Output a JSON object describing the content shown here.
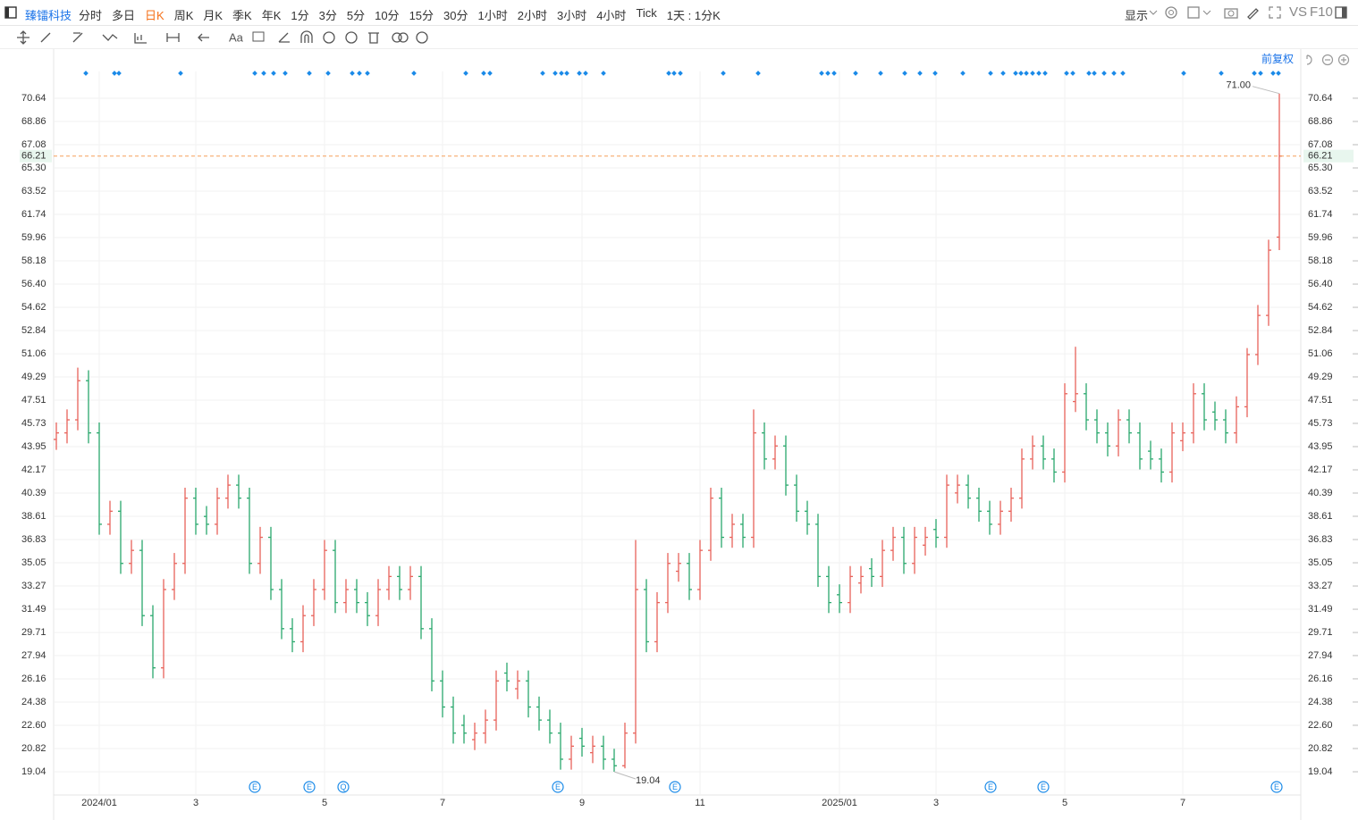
{
  "toolbar": {
    "symbol": "臻镭科技",
    "periods": [
      "分时",
      "多日",
      "日K",
      "周K",
      "月K",
      "季K",
      "年K",
      "1分",
      "3分",
      "5分",
      "10分",
      "15分",
      "30分",
      "1小时",
      "2小时",
      "3小时",
      "4小时",
      "Tick",
      "1天 : 1分K"
    ],
    "active": 2,
    "display": "显示",
    "vs": "VS",
    "f10": "F10",
    "text_tool": "Aa",
    "adjust": "前复权"
  },
  "chart_data": {
    "type": "ohlc",
    "categories": [
      null,
      null,
      null,
      null,
      "2024/01",
      null,
      null,
      null,
      null,
      null,
      null,
      null,
      null,
      "3",
      null,
      null,
      null,
      null,
      null,
      null,
      null,
      null,
      null,
      null,
      null,
      "5",
      null,
      null,
      null,
      null,
      null,
      null,
      null,
      null,
      null,
      null,
      "7",
      null,
      null,
      null,
      null,
      null,
      null,
      null,
      null,
      null,
      null,
      null,
      null,
      "9",
      null,
      null,
      null,
      null,
      null,
      null,
      null,
      null,
      null,
      null,
      "11",
      null,
      null,
      null,
      null,
      null,
      null,
      null,
      null,
      null,
      null,
      null,
      null,
      "2025/01",
      null,
      null,
      null,
      null,
      null,
      null,
      null,
      null,
      "3",
      null,
      null,
      null,
      null,
      null,
      null,
      null,
      null,
      null,
      null,
      null,
      "5",
      null,
      null,
      null,
      null,
      null,
      null,
      null,
      null,
      null,
      null,
      "7",
      null,
      null,
      null,
      null,
      null,
      null,
      null,
      null,
      null
    ],
    "open": [
      44.5,
      45,
      46,
      49,
      45,
      38,
      39,
      35,
      36,
      31,
      27,
      33,
      35,
      40,
      38.6,
      38,
      40,
      41,
      40,
      35,
      37,
      33,
      30,
      29,
      31,
      33,
      36,
      32,
      33,
      32,
      31,
      33,
      34,
      33,
      34,
      30,
      26,
      24,
      22.6,
      21.5,
      22,
      23,
      26.6,
      25.4,
      26,
      24,
      23,
      22,
      20,
      21.6,
      20.5,
      21,
      20,
      19.5,
      22,
      33,
      29,
      32,
      34.4,
      35,
      33,
      36,
      40,
      37,
      38,
      37,
      45,
      43,
      44,
      41,
      39,
      38,
      34,
      32.6,
      32,
      33.5,
      34.6,
      34,
      36,
      37,
      35,
      36.4,
      37.6,
      37,
      40.4,
      41,
      40,
      39,
      38,
      39,
      40,
      43,
      44,
      43,
      42,
      47.4,
      48,
      46,
      45,
      44,
      46,
      45,
      43.6,
      43,
      42,
      44.4,
      45,
      48,
      46.6,
      46,
      45,
      47,
      51,
      54,
      60
    ],
    "high": [
      45.8,
      46.8,
      50,
      49.8,
      45.8,
      39.8,
      39.8,
      36.8,
      36.8,
      31.8,
      33.8,
      35.8,
      40.8,
      40.8,
      39.4,
      40.8,
      41.8,
      41.8,
      40.8,
      37.8,
      37.8,
      33.8,
      30.8,
      31.8,
      33.8,
      36.8,
      36.8,
      33.8,
      33.8,
      32.8,
      33.8,
      34.8,
      34.8,
      34.8,
      34.8,
      30.8,
      26.8,
      24.8,
      23.4,
      22.8,
      23.8,
      26.8,
      27.4,
      26.8,
      26.8,
      24.8,
      23.8,
      22.8,
      21.8,
      22.4,
      21.8,
      21.8,
      20.8,
      22.8,
      36.8,
      33.8,
      32.8,
      35.8,
      35.8,
      35.8,
      36.8,
      40.8,
      40.8,
      38.8,
      38.8,
      46.8,
      45.8,
      44.8,
      44.8,
      41.8,
      39.8,
      38.8,
      34.8,
      33.4,
      34.8,
      34.8,
      35.4,
      36.8,
      37.8,
      37.8,
      37.8,
      37.8,
      38.4,
      41.8,
      41.8,
      41.8,
      40.8,
      39.8,
      39.8,
      40.8,
      43.8,
      44.8,
      44.8,
      43.8,
      48.8,
      51.6,
      48.8,
      46.8,
      45.8,
      46.8,
      46.8,
      45.8,
      44.4,
      43.8,
      45.8,
      45.8,
      48.8,
      48.8,
      47.4,
      46.8,
      47.8,
      51.5,
      54.8,
      59.8,
      71
    ],
    "low": [
      43.7,
      44.2,
      45.2,
      44.2,
      37.2,
      37.2,
      34.2,
      34.2,
      30.2,
      26.2,
      26.2,
      32.2,
      34.2,
      37.2,
      37.2,
      37.2,
      39.2,
      39.2,
      34.2,
      34.2,
      32.2,
      29.2,
      28.2,
      28.2,
      30.2,
      32.2,
      31.2,
      31.2,
      31.2,
      30.2,
      30.2,
      32.2,
      32.2,
      32.2,
      29.2,
      25.2,
      23.2,
      21.2,
      21.2,
      20.7,
      21.2,
      22.2,
      25.2,
      24.6,
      23.2,
      22.2,
      21.2,
      19.2,
      19.2,
      20.2,
      19.7,
      19.2,
      19.04,
      19.3,
      21.2,
      28.2,
      28.2,
      31.2,
      33.6,
      32.2,
      32.2,
      35.2,
      36.2,
      36.2,
      36.2,
      36.2,
      42.2,
      42.2,
      40.2,
      38.2,
      37.2,
      33.2,
      31.2,
      31.2,
      31.2,
      32.7,
      33.2,
      33.2,
      35.2,
      34.2,
      34.2,
      35.6,
      36.2,
      36.2,
      39.6,
      39.2,
      38.2,
      37.2,
      37.2,
      38.2,
      39.2,
      42.2,
      42.2,
      41.2,
      41.2,
      46.6,
      45.2,
      44.2,
      43.2,
      43.2,
      44.2,
      42.2,
      42.2,
      41.2,
      41.2,
      43.6,
      44.2,
      45.2,
      45.2,
      44.2,
      44.2,
      46.2,
      50.2,
      53.2,
      59
    ],
    "close": [
      45,
      46,
      49,
      45,
      38,
      39,
      35,
      36,
      31,
      27,
      33,
      35,
      40,
      38,
      38,
      40,
      41,
      40,
      35,
      37,
      33,
      30,
      29,
      31,
      33,
      36,
      32,
      33,
      32,
      31,
      33,
      34,
      33,
      34,
      30,
      26,
      24,
      22,
      22,
      22,
      23,
      26,
      26,
      26,
      24,
      23,
      22,
      20,
      21,
      21,
      21,
      20,
      19.5,
      22,
      33,
      29,
      32,
      35,
      35,
      33,
      36,
      40,
      37,
      38,
      37,
      45,
      43,
      44,
      41,
      39,
      38,
      34,
      32,
      32,
      34,
      34,
      34,
      36,
      37,
      35,
      37,
      37,
      37,
      41,
      41,
      40,
      39,
      38,
      39,
      40,
      43,
      44,
      43,
      42,
      48,
      48,
      46,
      45,
      44,
      46,
      45,
      43,
      43,
      42,
      45,
      45,
      48,
      46,
      46,
      45,
      47,
      51,
      54,
      59,
      66.21
    ],
    "up_color": "#e8625a",
    "down_color": "#29a86c",
    "price_line_color": "#f5a05a",
    "price_label_color": "#19a05a",
    "annotations": [
      "71.00",
      "19.04"
    ],
    "events": [
      "E",
      "E",
      "Q",
      "E",
      "E",
      "E",
      "E",
      "E"
    ],
    "ylim": [
      17.26,
      72.69
    ],
    "yticks": [
      19.04,
      20.82,
      {
        "value": 22.6,
        "label": "22.60"
      },
      24.38,
      26.16,
      27.94,
      29.71,
      31.49,
      33.27,
      35.05,
      36.83,
      38.61,
      40.39,
      42.17,
      43.95,
      45.73,
      47.51,
      49.29,
      51.06,
      52.84,
      54.62,
      {
        "value": 56.4,
        "label": "56.40"
      },
      58.18,
      59.96,
      61.74,
      63.52,
      {
        "value": 65.3,
        "label": "65.30"
      },
      67.08,
      68.86,
      70.64
    ],
    "grid": true
  }
}
